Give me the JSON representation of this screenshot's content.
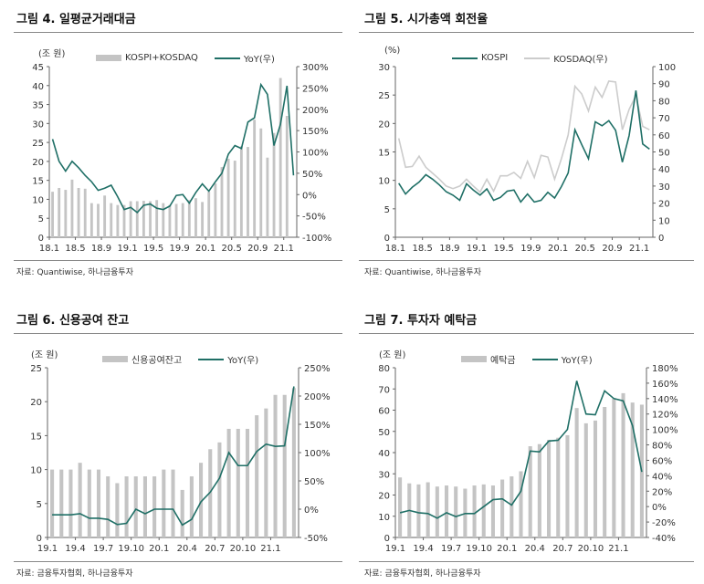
{
  "chart_data": [
    {
      "type": "bar+line",
      "title": "그림 4. 일평균거래대금",
      "unit": "(조 원)",
      "source": "자료: Quantiwise, 하나금융투자",
      "legend": [
        "KOSPI+KOSDAQ",
        "YoY(우)"
      ],
      "colors": {
        "bar": "#c4c4c4",
        "line": "#1f6f66"
      },
      "categories": [
        "18.1",
        "18.2",
        "18.3",
        "18.4",
        "18.5",
        "18.6",
        "18.7",
        "18.8",
        "18.9",
        "18.10",
        "18.11",
        "18.12",
        "19.1",
        "19.2",
        "19.3",
        "19.4",
        "19.5",
        "19.6",
        "19.7",
        "19.8",
        "19.9",
        "19.10",
        "19.11",
        "19.12",
        "20.1",
        "20.2",
        "20.3",
        "20.4",
        "20.5",
        "20.6",
        "20.7",
        "20.8",
        "20.9",
        "20.10",
        "20.11",
        "20.12",
        "21.1",
        "21.2"
      ],
      "xticks": [
        "18.1",
        "18.5",
        "18.9",
        "19.1",
        "19.5",
        "19.9",
        "20.1",
        "20.5",
        "20.9",
        "21.1"
      ],
      "ylim": [
        0,
        45
      ],
      "yticks": [
        "0",
        "5",
        "10",
        "15",
        "20",
        "25",
        "30",
        "35",
        "40",
        "45"
      ],
      "y2lim": [
        -100,
        300
      ],
      "y2ticks": [
        "-100%",
        "-50%",
        "0%",
        "50%",
        "100%",
        "150%",
        "200%",
        "250%",
        "300%"
      ],
      "series": [
        {
          "name": "KOSPI+KOSDAQ",
          "kind": "bar",
          "axis": "left",
          "values": [
            12,
            13,
            12.5,
            15.2,
            13,
            12.8,
            9,
            8.8,
            11,
            9,
            8.5,
            8.5,
            9.5,
            9.5,
            9.6,
            9.5,
            9.8,
            9,
            8.5,
            8.8,
            9,
            9.8,
            10.3,
            9.3,
            12,
            14.2,
            18.5,
            20.7,
            20.2,
            24,
            23.8,
            31,
            28.7,
            21,
            27.5,
            42,
            32,
            null
          ]
        },
        {
          "name": "YoY(우)",
          "kind": "line",
          "axis": "right",
          "values": [
            130,
            78,
            55,
            78,
            63,
            45,
            30,
            10,
            15,
            22,
            -5,
            -35,
            -30,
            -42,
            -25,
            -22,
            -32,
            -35,
            -27,
            -2,
            0,
            -20,
            5,
            25,
            8,
            30,
            50,
            95,
            115,
            108,
            170,
            180,
            258,
            235,
            115,
            165,
            255,
            45
          ]
        }
      ]
    },
    {
      "type": "line",
      "title": "그림 5. 시가총액 회전율",
      "unit": "(%)",
      "source": "자료: Quantiwise, 하나금융투자",
      "legend": [
        "KOSPI",
        "KOSDAQ(우)"
      ],
      "colors": {
        "line1": "#1f6f66",
        "line2": "#cccccc"
      },
      "categories": [
        "18.1",
        "18.2",
        "18.3",
        "18.4",
        "18.5",
        "18.6",
        "18.7",
        "18.8",
        "18.9",
        "18.10",
        "18.11",
        "18.12",
        "19.1",
        "19.2",
        "19.3",
        "19.4",
        "19.5",
        "19.6",
        "19.7",
        "19.8",
        "19.9",
        "19.10",
        "19.11",
        "19.12",
        "20.1",
        "20.2",
        "20.3",
        "20.4",
        "20.5",
        "20.6",
        "20.7",
        "20.8",
        "20.9",
        "20.10",
        "20.11",
        "20.12",
        "21.1",
        "21.2"
      ],
      "xticks": [
        "18.1",
        "18.5",
        "18.9",
        "19.1",
        "19.5",
        "19.9",
        "20.1",
        "20.5",
        "20.9",
        "21.1"
      ],
      "ylim": [
        0,
        30
      ],
      "yticks": [
        "0",
        "5",
        "10",
        "15",
        "20",
        "25",
        "30"
      ],
      "y2lim": [
        0,
        100
      ],
      "y2ticks": [
        "0",
        "10",
        "20",
        "30",
        "40",
        "50",
        "60",
        "70",
        "80",
        "90",
        "100"
      ],
      "series": [
        {
          "name": "KOSDAQ(우)",
          "kind": "line",
          "axis": "right",
          "values": [
            58,
            41,
            41.5,
            47.5,
            41,
            37.5,
            34,
            30,
            28.5,
            30,
            34,
            30,
            26.5,
            34,
            27,
            36,
            36,
            38,
            34.5,
            44.5,
            35,
            48,
            47,
            34,
            46,
            60,
            88.5,
            84,
            74,
            88,
            82,
            91.5,
            91,
            63,
            75,
            83,
            65,
            63
          ]
        },
        {
          "name": "KOSPI",
          "kind": "line",
          "axis": "left",
          "values": [
            9.5,
            7.6,
            8.8,
            9.7,
            11,
            10.2,
            9.2,
            8,
            7.4,
            6.5,
            9.4,
            8.3,
            7.4,
            8.5,
            6.5,
            7,
            8.1,
            8.3,
            6.2,
            7.6,
            6.2,
            6.5,
            7.9,
            6.9,
            8.9,
            11.3,
            18.9,
            16.3,
            13.8,
            20.3,
            19.6,
            20.5,
            18.8,
            13.2,
            17.9,
            25.8,
            16.4,
            15.5
          ]
        }
      ]
    },
    {
      "type": "bar+line",
      "title": "그림 6. 신용공여 잔고",
      "unit": "(조 원)",
      "source": "자료: 금융투자협회, 하나금융투자",
      "legend": [
        "신용공여잔고",
        "YoY(우)"
      ],
      "colors": {
        "bar": "#c4c4c4",
        "line": "#1f6f66"
      },
      "categories": [
        "19.1",
        "19.2",
        "19.3",
        "19.4",
        "19.5",
        "19.6",
        "19.7",
        "19.8",
        "19.9",
        "19.10",
        "19.11",
        "19.12",
        "20.1",
        "20.2",
        "20.3",
        "20.4",
        "20.5",
        "20.6",
        "20.7",
        "20.8",
        "20.9",
        "20.10",
        "20.11",
        "20.12",
        "21.1",
        "21.2",
        "21.3"
      ],
      "xticks": [
        "19.1",
        "19.4",
        "19.7",
        "19.10",
        "20.1",
        "20.4",
        "20.7",
        "20.10",
        "21.1"
      ],
      "ylim": [
        0,
        25
      ],
      "yticks": [
        "0",
        "5",
        "10",
        "15",
        "20",
        "25"
      ],
      "y2lim": [
        -50,
        250
      ],
      "y2ticks": [
        "-50%",
        "0%",
        "50%",
        "100%",
        "150%",
        "200%",
        "250%"
      ],
      "series": [
        {
          "name": "신용공여잔고",
          "kind": "bar",
          "axis": "left",
          "values": [
            10,
            10,
            10,
            11,
            10,
            10,
            9,
            8,
            9,
            9,
            9,
            9,
            10,
            10,
            7,
            9,
            11,
            13,
            14,
            16,
            16,
            16,
            18,
            19,
            21,
            21,
            22
          ]
        },
        {
          "name": "YoY(우)",
          "kind": "line",
          "axis": "right",
          "values": [
            -10,
            -10,
            -10,
            -8,
            -16,
            -16,
            -18,
            -27,
            -25,
            0,
            -8,
            0,
            0,
            0,
            -28,
            -18,
            13,
            30,
            55,
            100,
            77,
            77,
            102,
            115,
            111,
            112,
            217
          ]
        }
      ]
    },
    {
      "type": "bar+line",
      "title": "그림 7. 투자자 예탁금",
      "unit": "(조 원)",
      "source": "자료: 금융투자협회, 하나금융투자",
      "legend": [
        "예탁금",
        "YoY(우)"
      ],
      "colors": {
        "bar": "#c4c4c4",
        "line": "#1f6f66"
      },
      "categories": [
        "19.1",
        "19.2",
        "19.3",
        "19.4",
        "19.5",
        "19.6",
        "19.7",
        "19.8",
        "19.9",
        "19.10",
        "19.11",
        "19.12",
        "20.1",
        "20.2",
        "20.3",
        "20.4",
        "20.5",
        "20.6",
        "20.7",
        "20.8",
        "20.9",
        "20.10",
        "20.11",
        "20.12",
        "21.1",
        "21.2",
        "21.3"
      ],
      "xticks": [
        "19.1",
        "19.4",
        "19.7",
        "19.10",
        "20.1",
        "20.4",
        "20.7",
        "20.10",
        "21.1"
      ],
      "ylim": [
        0,
        80
      ],
      "yticks": [
        "0",
        "10",
        "20",
        "30",
        "40",
        "50",
        "60",
        "70",
        "80"
      ],
      "y2lim": [
        -40,
        180
      ],
      "y2ticks": [
        "-40%",
        "-20%",
        "0%",
        "20%",
        "40%",
        "60%",
        "80%",
        "100%",
        "120%",
        "140%",
        "160%",
        "180%"
      ],
      "series": [
        {
          "name": "예탁금",
          "kind": "bar",
          "axis": "left",
          "values": [
            28.3,
            25.5,
            25,
            26,
            24,
            24.5,
            24,
            23,
            24.5,
            25,
            24.5,
            27.3,
            28.8,
            31.2,
            43,
            44,
            46,
            47,
            48.2,
            61,
            53.8,
            55.1,
            61.5,
            65.5,
            68,
            63.6,
            62.6
          ]
        },
        {
          "name": "YoY(우)",
          "kind": "line",
          "axis": "right",
          "values": [
            -8,
            -5,
            -8,
            -9,
            -15,
            -8,
            -13,
            -9,
            -9,
            0,
            9,
            10,
            2,
            20,
            72,
            71,
            85,
            86,
            100,
            163,
            120,
            119,
            150,
            140,
            137,
            105,
            45
          ]
        }
      ]
    }
  ]
}
